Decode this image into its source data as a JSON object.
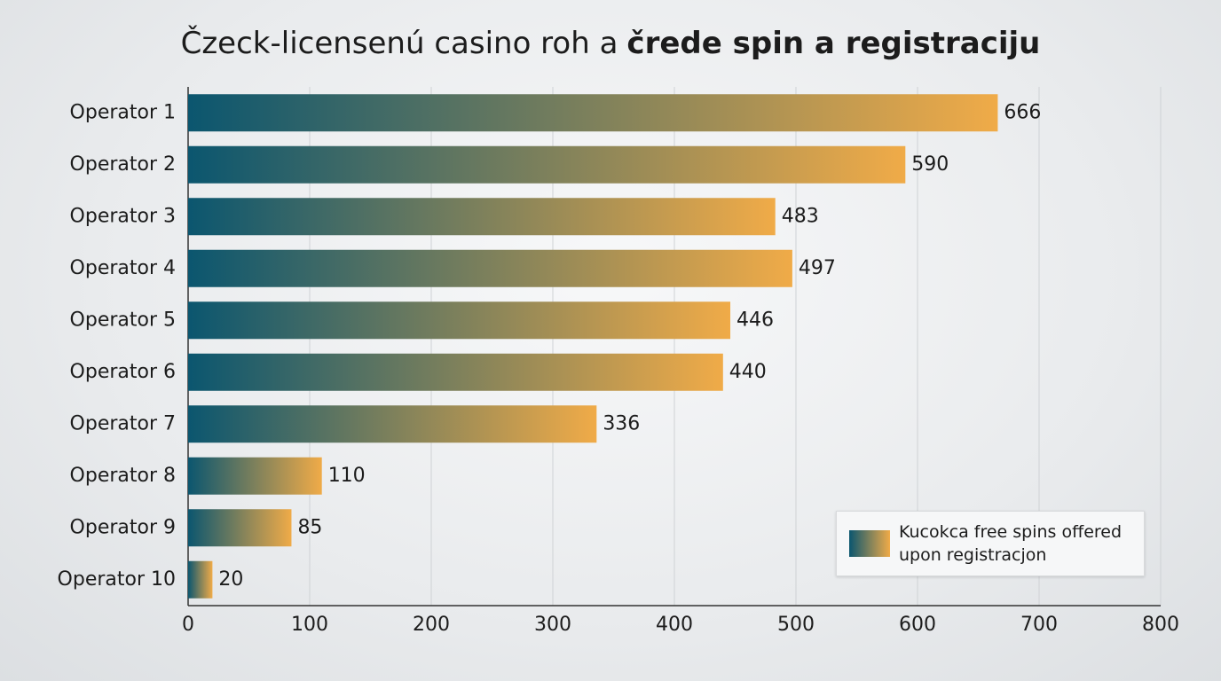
{
  "chart_data": {
    "type": "bar",
    "orientation": "horizontal",
    "title": [
      "Čzeck-licensenú casino roh a",
      "črede spin a registraciju"
    ],
    "categories": [
      "Operator 1",
      "Operator 2",
      "Operator 3",
      "Operator 4",
      "Operator 5",
      "Operator 6",
      "Operator 7",
      "Operator 8",
      "Operator 9",
      "Operator 10"
    ],
    "series": [
      {
        "name": "Kucokca free spins offered upon registracjon",
        "color": [
          "#0b566f",
          "#f0ab48"
        ],
        "values": [
          666,
          590,
          483,
          497,
          446,
          440,
          336,
          110,
          85,
          20
        ]
      }
    ],
    "xlim": [
      0,
      800
    ],
    "xticks": [
      0,
      100,
      200,
      300,
      400,
      500,
      600,
      700,
      800
    ],
    "grid": true,
    "legend": "lower right"
  }
}
